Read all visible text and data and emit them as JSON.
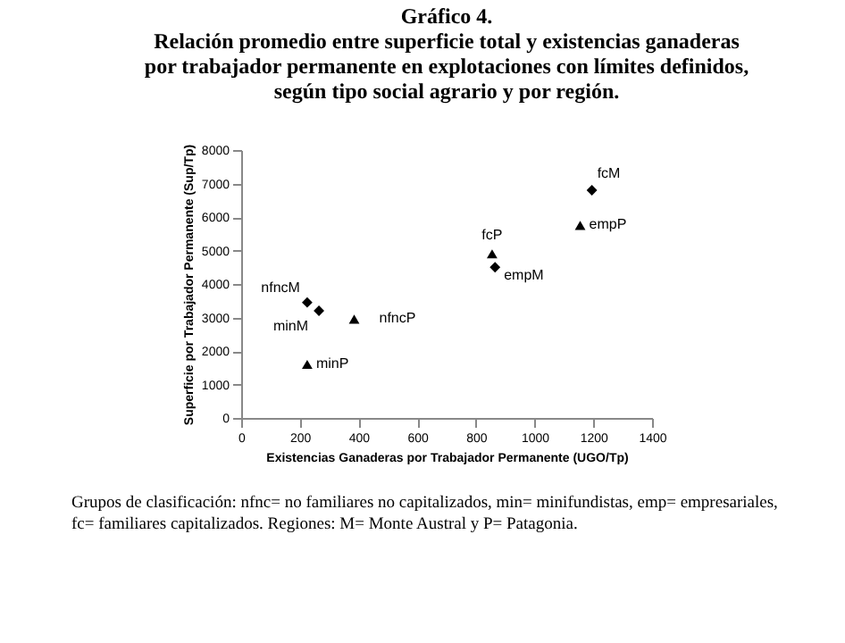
{
  "chart_data": {
    "type": "scatter",
    "title": "Gráfico 4.",
    "subtitle": "Relación promedio entre superficie total y existencias ganaderas\npor trabajador permanente en explotaciones con límites definidos,\nsegún tipo social agrario y por región.",
    "xlabel": "Existencias Ganaderas por Trabajador Permanente (UGO/Tp)",
    "ylabel": "Superficie por Trabajador Permanente (Sup/Tp)",
    "series": [
      {
        "color": "#000000",
        "marker": "diamond",
        "x": [
          225,
          265,
          865,
          1195
        ],
        "values": [
          3450,
          3200,
          4500,
          6800
        ]
      },
      {
        "color": "#000000",
        "marker": "triangle",
        "x": [
          225,
          385,
          855,
          1155
        ],
        "values": [
          1600,
          2950,
          4900,
          5750
        ]
      }
    ],
    "xlim": [
      0,
      1400
    ],
    "xticks": [
      0,
      200,
      400,
      600,
      800,
      1000,
      1200,
      1400
    ],
    "ylim": [
      0,
      8000
    ],
    "yticks": [
      0,
      1000,
      2000,
      3000,
      4000,
      5000,
      6000,
      7000,
      8000
    ],
    "grid": false,
    "annotations": [
      {
        "text": "nfncM",
        "x": 225,
        "y": 3450
      },
      {
        "text": "minM",
        "x": 265,
        "y": 3200
      },
      {
        "text": "empM",
        "x": 865,
        "y": 4500
      },
      {
        "text": "fcM",
        "x": 1195,
        "y": 6800
      },
      {
        "text": "minP",
        "x": 225,
        "y": 1600
      },
      {
        "text": "nfncP",
        "x": 385,
        "y": 2950
      },
      {
        "text": "fcP",
        "x": 855,
        "y": 4900
      },
      {
        "text": "empP",
        "x": 1155,
        "y": 5750
      },
      "Grupos de clasificación: nfnc= no familiares no capitalizados, min= minifundistas, emp= empresariales,\nfc= familiares capitalizados. Regiones: M= Monte Austral y P= Patagonia."
    ]
  }
}
